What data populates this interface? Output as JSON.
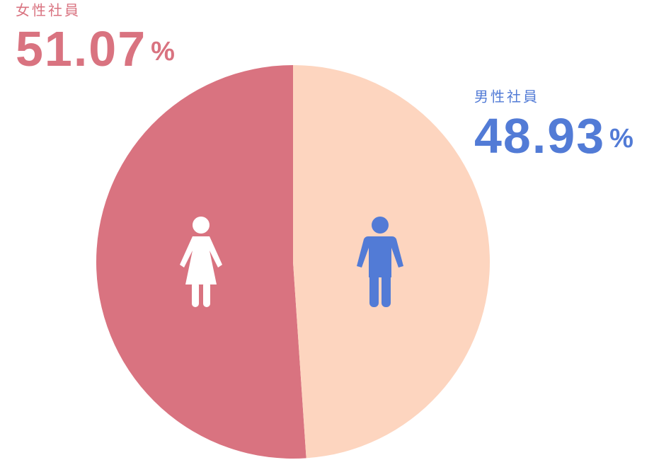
{
  "chart_data": {
    "type": "pie",
    "categories": [
      "女性社員",
      "男性社員"
    ],
    "values": [
      51.07,
      48.93
    ],
    "value_labels": [
      "51.07%",
      "48.93%"
    ],
    "colors": [
      "#d97380",
      "#fdd5bf"
    ],
    "label_colors": [
      "#d97380",
      "#527bd6"
    ]
  }
}
